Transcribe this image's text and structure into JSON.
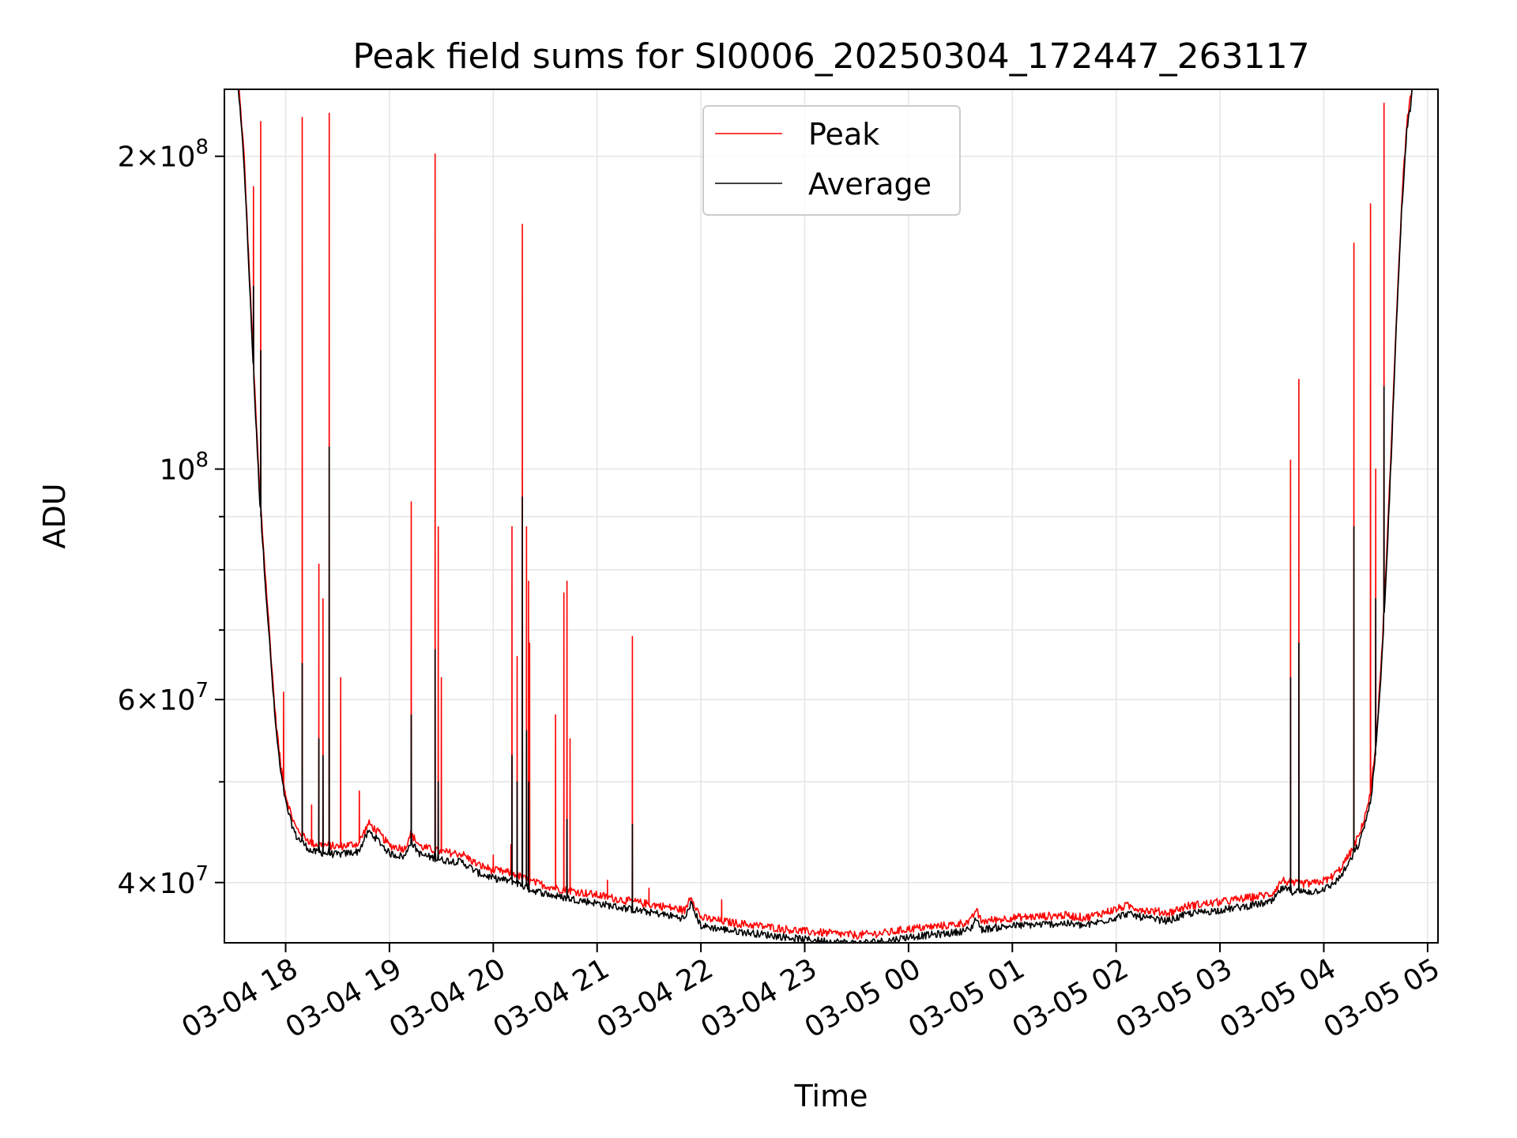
{
  "chart_data": {
    "type": "line",
    "title": "Peak field sums for SI0006_20250304_172447_263117",
    "xlabel": "Time",
    "ylabel": "ADU",
    "x_unit": "hours since 03-04 17:00",
    "xlim": [
      17.41,
      29.1
    ],
    "ylim": [
      35000000,
      232000000
    ],
    "yscale": "log",
    "grid": true,
    "legend_position": "top-center",
    "x_ticks": [
      {
        "value": 18,
        "label": "03-04 18"
      },
      {
        "value": 19,
        "label": "03-04 19"
      },
      {
        "value": 20,
        "label": "03-04 20"
      },
      {
        "value": 21,
        "label": "03-04 21"
      },
      {
        "value": 22,
        "label": "03-04 22"
      },
      {
        "value": 23,
        "label": "03-04 23"
      },
      {
        "value": 24,
        "label": "03-05 00"
      },
      {
        "value": 25,
        "label": "03-05 01"
      },
      {
        "value": 26,
        "label": "03-05 02"
      },
      {
        "value": 27,
        "label": "03-05 03"
      },
      {
        "value": 28,
        "label": "03-05 04"
      },
      {
        "value": 29,
        "label": "03-05 05"
      }
    ],
    "y_major_ticks": [
      {
        "value": 40000000,
        "base": "4",
        "mult": "×",
        "exp_base": "10",
        "exp": "7"
      },
      {
        "value": 60000000,
        "base": "6",
        "mult": "×",
        "exp_base": "10",
        "exp": "7"
      },
      {
        "value": 100000000,
        "base": "",
        "mult": "",
        "exp_base": "10",
        "exp": "8"
      },
      {
        "value": 200000000,
        "base": "2",
        "mult": "×",
        "exp_base": "10",
        "exp": "8"
      }
    ],
    "y_minor_ticks": [
      50000000,
      70000000,
      80000000,
      90000000
    ],
    "series": [
      {
        "name": "Peak",
        "color": "#ff0000",
        "baseline": [
          [
            17.41,
            232000000
          ],
          [
            17.55,
            232000000
          ],
          [
            17.6,
            200000000
          ],
          [
            17.65,
            155000000
          ],
          [
            17.7,
            120000000
          ],
          [
            17.75,
            95000000
          ],
          [
            17.8,
            80000000
          ],
          [
            17.85,
            68000000
          ],
          [
            17.9,
            58000000
          ],
          [
            17.95,
            52000000
          ],
          [
            18.0,
            48500000
          ],
          [
            18.05,
            46500000
          ],
          [
            18.1,
            45000000
          ],
          [
            18.15,
            44500000
          ],
          [
            18.25,
            43500000
          ],
          [
            18.5,
            43200000
          ],
          [
            18.7,
            43500000
          ],
          [
            18.8,
            45500000
          ],
          [
            18.9,
            44500000
          ],
          [
            19.0,
            43300000
          ],
          [
            19.15,
            43000000
          ],
          [
            19.2,
            44500000
          ],
          [
            19.3,
            43200000
          ],
          [
            19.5,
            42700000
          ],
          [
            19.7,
            42500000
          ],
          [
            19.85,
            41500000
          ],
          [
            20.0,
            41000000
          ],
          [
            20.2,
            40700000
          ],
          [
            20.35,
            40000000
          ],
          [
            20.6,
            39400000
          ],
          [
            21.0,
            38800000
          ],
          [
            21.3,
            38300000
          ],
          [
            21.6,
            37900000
          ],
          [
            21.85,
            37500000
          ],
          [
            21.9,
            38800000
          ],
          [
            22.0,
            36900000
          ],
          [
            22.3,
            36500000
          ],
          [
            22.6,
            36200000
          ],
          [
            23.0,
            35800000
          ],
          [
            23.5,
            35500000
          ],
          [
            23.8,
            35700000
          ],
          [
            24.0,
            36000000
          ],
          [
            24.4,
            36300000
          ],
          [
            24.6,
            36600000
          ],
          [
            24.65,
            37600000
          ],
          [
            24.7,
            36600000
          ],
          [
            25.0,
            36900000
          ],
          [
            25.5,
            37100000
          ],
          [
            25.7,
            36900000
          ],
          [
            26.0,
            37600000
          ],
          [
            26.1,
            37900000
          ],
          [
            26.3,
            37500000
          ],
          [
            26.5,
            37300000
          ],
          [
            26.7,
            37900000
          ],
          [
            27.0,
            38200000
          ],
          [
            27.3,
            38600000
          ],
          [
            27.5,
            38900000
          ],
          [
            27.6,
            40100000
          ],
          [
            27.7,
            39800000
          ],
          [
            27.9,
            39800000
          ],
          [
            28.05,
            40200000
          ],
          [
            28.15,
            41000000
          ],
          [
            28.25,
            42500000
          ],
          [
            28.35,
            44500000
          ],
          [
            28.45,
            48500000
          ],
          [
            28.5,
            54000000
          ],
          [
            28.55,
            64000000
          ],
          [
            28.6,
            80000000
          ],
          [
            28.65,
            105000000
          ],
          [
            28.7,
            140000000
          ],
          [
            28.75,
            180000000
          ],
          [
            28.8,
            215000000
          ],
          [
            28.85,
            232000000
          ],
          [
            29.1,
            232000000
          ]
        ],
        "spikes": [
          [
            17.69,
            187000000
          ],
          [
            17.76,
            216000000
          ],
          [
            17.98,
            61000000
          ],
          [
            18.16,
            218000000
          ],
          [
            18.25,
            47500000
          ],
          [
            18.32,
            81000000
          ],
          [
            18.36,
            75000000
          ],
          [
            18.42,
            220000000
          ],
          [
            18.53,
            63000000
          ],
          [
            18.71,
            49000000
          ],
          [
            19.21,
            93000000
          ],
          [
            19.44,
            201000000
          ],
          [
            19.47,
            88000000
          ],
          [
            19.5,
            63000000
          ],
          [
            20.0,
            42500000
          ],
          [
            20.17,
            43500000
          ],
          [
            20.18,
            88000000
          ],
          [
            20.23,
            66000000
          ],
          [
            20.28,
            172000000
          ],
          [
            20.32,
            88000000
          ],
          [
            20.34,
            78000000
          ],
          [
            20.35,
            68000000
          ],
          [
            20.6,
            58000000
          ],
          [
            20.68,
            76000000
          ],
          [
            20.71,
            78000000
          ],
          [
            20.74,
            55000000
          ],
          [
            21.1,
            40200000
          ],
          [
            21.34,
            69000000
          ],
          [
            21.5,
            39500000
          ],
          [
            22.2,
            38500000
          ],
          [
            27.68,
            102000000
          ],
          [
            27.76,
            122000000
          ],
          [
            28.29,
            165000000
          ],
          [
            28.45,
            180000000
          ],
          [
            28.5,
            100000000
          ],
          [
            28.58,
            225000000
          ]
        ]
      },
      {
        "name": "Average",
        "color": "#000000",
        "spikes": [
          [
            17.69,
            150000000
          ],
          [
            17.76,
            130000000
          ],
          [
            18.16,
            65000000
          ],
          [
            18.32,
            55000000
          ],
          [
            18.36,
            53000000
          ],
          [
            18.42,
            105000000
          ],
          [
            19.21,
            58000000
          ],
          [
            19.44,
            67000000
          ],
          [
            19.47,
            50000000
          ],
          [
            20.18,
            53000000
          ],
          [
            20.23,
            50000000
          ],
          [
            20.28,
            94000000
          ],
          [
            20.32,
            56000000
          ],
          [
            20.34,
            50000000
          ],
          [
            20.71,
            46000000
          ],
          [
            21.34,
            45500000
          ],
          [
            27.68,
            63000000
          ],
          [
            27.76,
            68000000
          ],
          [
            28.29,
            88000000
          ],
          [
            28.5,
            75000000
          ],
          [
            28.58,
            120000000
          ]
        ]
      }
    ]
  }
}
